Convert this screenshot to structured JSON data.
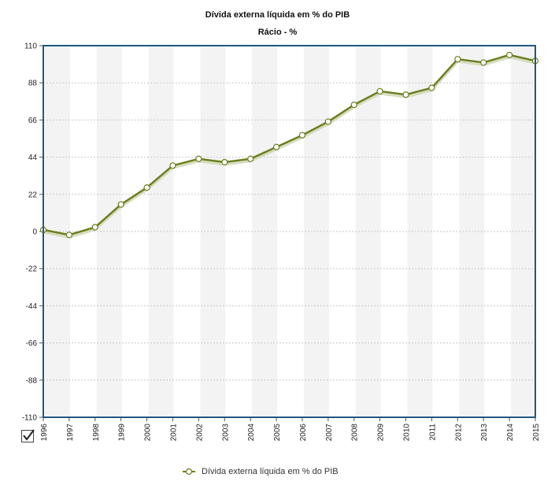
{
  "chart_data": {
    "type": "line",
    "title": "Dívida externa líquida em % do PIB",
    "subtitle": "Rácio - %",
    "xlabel": "",
    "ylabel": "",
    "ylim": [
      -110,
      110
    ],
    "y_ticks": [
      "110",
      "88",
      "66",
      "44",
      "22",
      "0",
      "-22",
      "-44",
      "-66",
      "-88",
      "-110"
    ],
    "categories": [
      "1996",
      "1997",
      "1998",
      "1999",
      "2000",
      "2001",
      "2002",
      "2003",
      "2004",
      "2005",
      "2006",
      "2007",
      "2008",
      "2009",
      "2010",
      "2011",
      "2012",
      "2013",
      "2014",
      "2015"
    ],
    "series": [
      {
        "name": "Dívida externa líquida em % do PIB",
        "color": "#6b7f1e",
        "values": [
          1,
          -2,
          2.5,
          16,
          26,
          39,
          43,
          41,
          43,
          50,
          57,
          65,
          75,
          83,
          81,
          85,
          102,
          100,
          104.5,
          101
        ]
      }
    ],
    "grid": true,
    "legend_position": "bottom"
  },
  "legend": {
    "label": "Dívida externa líquida em % do PIB"
  },
  "colors": {
    "frame": "#1d5a7a",
    "series": "#6b7f1e",
    "band": "#f3f3f3",
    "grid": "#c8c8c8"
  }
}
